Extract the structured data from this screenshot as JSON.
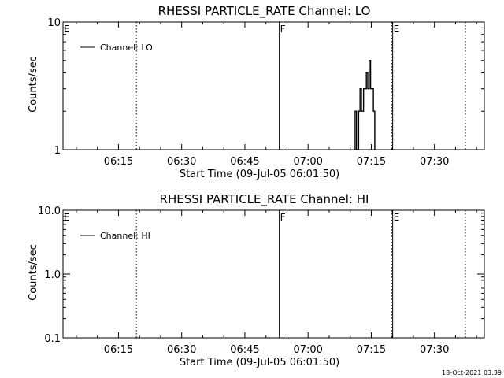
{
  "footer": {
    "timestamp": "18-Oct-2021 03:39"
  },
  "chart_data": [
    {
      "type": "line",
      "title": "RHESSI PARTICLE_RATE Channel: LO",
      "xlabel": "Start Time (09-Jul-05 06:01:50)",
      "ylabel": "Counts/sec",
      "y_scale": "log",
      "xlim": [
        "06:01:50",
        "07:41:50"
      ],
      "ylim": [
        1,
        10
      ],
      "x_ticks": [
        "06:15",
        "06:30",
        "06:45",
        "07:00",
        "07:15",
        "07:30"
      ],
      "y_ticks": [
        "1",
        "10"
      ],
      "legend": {
        "entries": [
          "Channel: LO"
        ],
        "placement": "top-left"
      },
      "markers": [
        {
          "label": "E",
          "time": "06:01:50",
          "style": "dotted"
        },
        {
          "label": "",
          "time": "06:19:15",
          "style": "dotted"
        },
        {
          "label": "F",
          "time": "06:53:10",
          "style": "solid"
        },
        {
          "label": "",
          "time": "07:19:50",
          "style": "dotted"
        },
        {
          "label": "E",
          "time": "07:20:05",
          "style": "solid"
        },
        {
          "label": "",
          "time": "07:37:20",
          "style": "dotted"
        }
      ],
      "series": [
        {
          "name": "Channel: LO",
          "x": [
            "07:11:00",
            "07:11:10",
            "07:11:30",
            "07:12:00",
            "07:12:20",
            "07:12:40",
            "07:13:10",
            "07:13:30",
            "07:13:50",
            "07:14:10",
            "07:14:30",
            "07:14:50",
            "07:15:10",
            "07:15:30",
            "07:15:50",
            "07:16:00"
          ],
          "y": [
            1,
            2,
            1,
            2,
            3,
            2,
            3,
            3,
            4,
            3,
            5,
            3,
            3,
            2,
            1,
            1
          ]
        }
      ]
    },
    {
      "type": "line",
      "title": "RHESSI PARTICLE_RATE Channel: HI",
      "xlabel": "Start Time (09-Jul-05 06:01:50)",
      "ylabel": "Counts/sec",
      "y_scale": "log",
      "xlim": [
        "06:01:50",
        "07:41:50"
      ],
      "ylim": [
        0.1,
        10
      ],
      "x_ticks": [
        "06:15",
        "06:30",
        "06:45",
        "07:00",
        "07:15",
        "07:30"
      ],
      "y_ticks": [
        "0.1",
        "1.0",
        "10.0"
      ],
      "legend": {
        "entries": [
          "Channel: HI"
        ],
        "placement": "top-left"
      },
      "markers": [
        {
          "label": "E",
          "time": "06:01:50",
          "style": "dotted"
        },
        {
          "label": "",
          "time": "06:19:15",
          "style": "dotted"
        },
        {
          "label": "F",
          "time": "06:53:10",
          "style": "solid"
        },
        {
          "label": "",
          "time": "07:19:50",
          "style": "dotted"
        },
        {
          "label": "E",
          "time": "07:20:05",
          "style": "solid"
        },
        {
          "label": "",
          "time": "07:37:20",
          "style": "dotted"
        }
      ],
      "series": [
        {
          "name": "Channel: HI",
          "x": [],
          "y": []
        }
      ]
    }
  ]
}
